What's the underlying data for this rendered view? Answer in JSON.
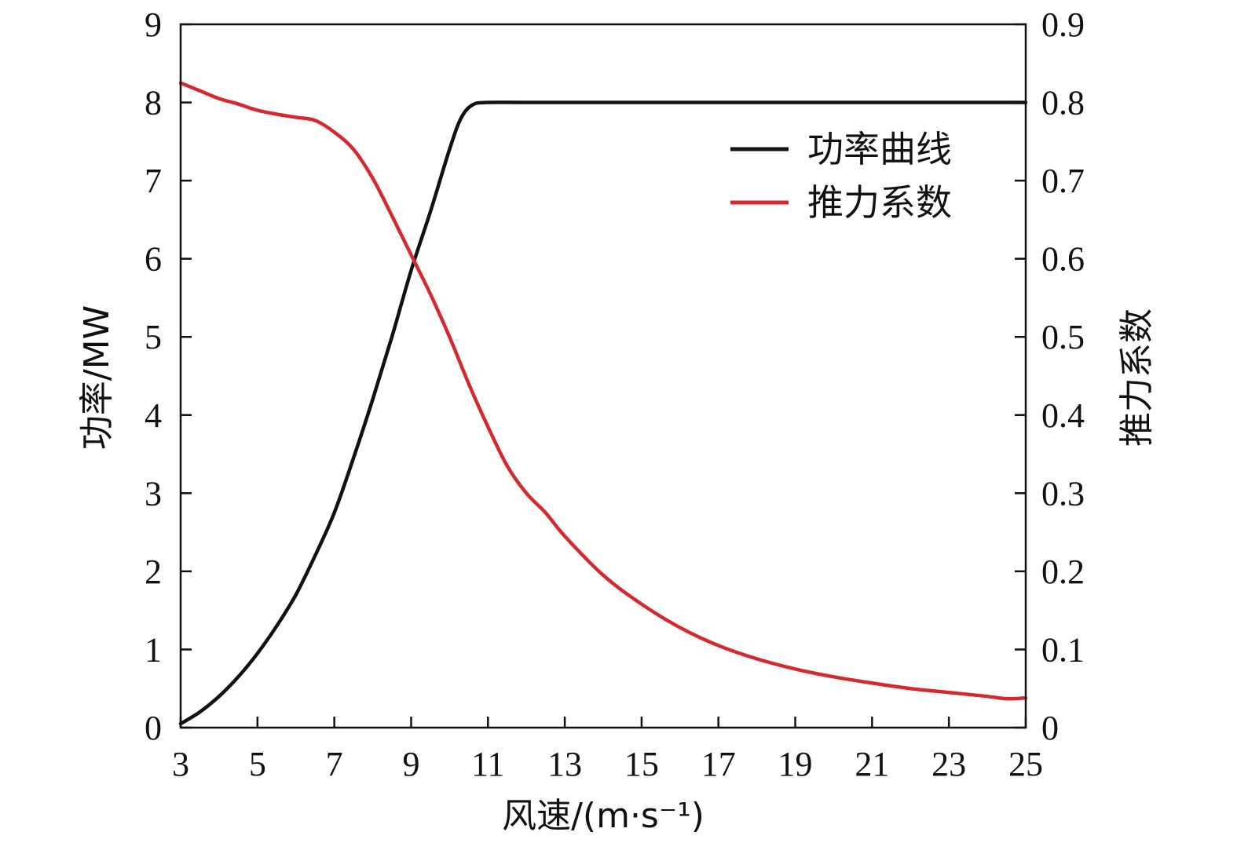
{
  "chart_data": {
    "type": "line",
    "xlabel": "风速/(m·s⁻¹)",
    "ylabel_left": "功率/MW",
    "ylabel_right": "推力系数",
    "xlim": [
      3,
      25
    ],
    "ylim_left": [
      0,
      9
    ],
    "ylim_right": [
      0,
      0.9
    ],
    "x_ticks": [
      3,
      5,
      7,
      9,
      11,
      13,
      15,
      17,
      19,
      21,
      23,
      25
    ],
    "y_ticks_left": [
      0,
      1,
      2,
      3,
      4,
      5,
      6,
      7,
      8,
      9
    ],
    "y_ticks_right": [
      "0",
      "0.1",
      "0.2",
      "0.3",
      "0.4",
      "0.5",
      "0.6",
      "0.7",
      "0.8",
      "0.9"
    ],
    "grid": false,
    "legend_position": "top-right",
    "series": [
      {
        "name": "功率曲线",
        "axis": "left",
        "color": "#111111",
        "x": [
          3,
          3.5,
          4,
          4.5,
          5,
          5.5,
          6,
          6.5,
          7,
          7.5,
          8,
          8.5,
          9,
          9.5,
          10,
          10.3,
          10.6,
          11,
          12,
          14,
          16,
          18,
          20,
          22,
          24,
          25
        ],
        "y": [
          0.05,
          0.2,
          0.4,
          0.65,
          0.95,
          1.3,
          1.7,
          2.2,
          2.75,
          3.45,
          4.2,
          5.0,
          5.85,
          6.6,
          7.4,
          7.8,
          7.97,
          8.0,
          8.0,
          8.0,
          8.0,
          8.0,
          8.0,
          8.0,
          8.0,
          8.0
        ]
      },
      {
        "name": "推力系数",
        "axis": "right",
        "color": "#d42a2f",
        "x": [
          3,
          3.5,
          4,
          4.5,
          5,
          5.5,
          6,
          6.5,
          7,
          7.5,
          8,
          8.5,
          9,
          9.5,
          10,
          10.5,
          11,
          11.5,
          12,
          12.5,
          13,
          14,
          15,
          16,
          17,
          18,
          19,
          20,
          21,
          22,
          23,
          24,
          24.5,
          25
        ],
        "y": [
          0.825,
          0.815,
          0.805,
          0.798,
          0.79,
          0.785,
          0.781,
          0.777,
          0.762,
          0.74,
          0.703,
          0.655,
          0.605,
          0.555,
          0.5,
          0.44,
          0.385,
          0.335,
          0.3,
          0.275,
          0.245,
          0.195,
          0.158,
          0.128,
          0.105,
          0.088,
          0.075,
          0.065,
          0.057,
          0.05,
          0.045,
          0.04,
          0.037,
          0.038
        ]
      }
    ]
  }
}
